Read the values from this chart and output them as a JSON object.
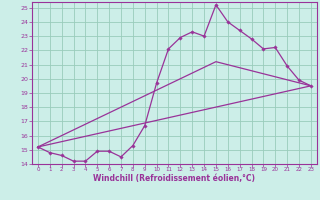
{
  "xlabel": "Windchill (Refroidissement éolien,°C)",
  "bg_color": "#cceee8",
  "grid_color": "#99ccbb",
  "line_color": "#993399",
  "spine_color": "#993399",
  "xlim": [
    -0.5,
    23.5
  ],
  "ylim": [
    14,
    25.4
  ],
  "xticks": [
    0,
    1,
    2,
    3,
    4,
    5,
    6,
    7,
    8,
    9,
    10,
    11,
    12,
    13,
    14,
    15,
    16,
    17,
    18,
    19,
    20,
    21,
    22,
    23
  ],
  "yticks": [
    14,
    15,
    16,
    17,
    18,
    19,
    20,
    21,
    22,
    23,
    24,
    25
  ],
  "series1_x": [
    0,
    1,
    2,
    3,
    4,
    5,
    6,
    7,
    8,
    9,
    10,
    11,
    12,
    13,
    14,
    15,
    16,
    17,
    18,
    19,
    20,
    21,
    22,
    23
  ],
  "series1_y": [
    15.2,
    14.8,
    14.6,
    14.2,
    14.2,
    14.9,
    14.9,
    14.5,
    15.3,
    16.7,
    19.7,
    22.1,
    22.9,
    23.3,
    23.0,
    25.2,
    24.0,
    23.4,
    22.8,
    22.1,
    22.2,
    20.9,
    19.9,
    19.5
  ],
  "series2_x": [
    0,
    23
  ],
  "series2_y": [
    15.2,
    19.5
  ],
  "series3_x": [
    0,
    15,
    23
  ],
  "series3_y": [
    15.2,
    21.2,
    19.5
  ]
}
